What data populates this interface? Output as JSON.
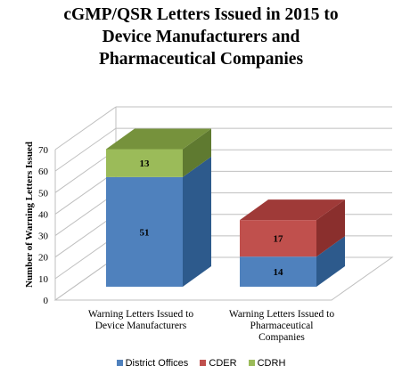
{
  "chart_data": {
    "type": "bar",
    "stacked": true,
    "three_d": true,
    "title_lines": [
      "cGMP/QSR Letters Issued  in 2015 to",
      "Device Manufacturers  and",
      "Pharmaceutical  Companies"
    ],
    "ylabel": "Number  of Warning Letters Issued",
    "ylim": [
      0,
      70
    ],
    "yticks": [
      "0",
      "10",
      "20",
      "30",
      "40",
      "50",
      "60",
      "70"
    ],
    "categories": [
      [
        "Warning Letters Issued to",
        "Device Manufacturers"
      ],
      [
        "Warning Letters Issued to",
        "Pharmaceutical",
        "Companies"
      ]
    ],
    "series": [
      {
        "name": "District Offices",
        "values": [
          51,
          14
        ],
        "labels": [
          "51",
          "14"
        ],
        "color": "#4f81bd",
        "top": "#6b96cc",
        "side": "#2d5a8c"
      },
      {
        "name": "CDER",
        "values": [
          0,
          17
        ],
        "labels": [
          "",
          "17"
        ],
        "color": "#c0504d",
        "top": "#9f3a38",
        "side": "#8a2f2d"
      },
      {
        "name": "CDRH",
        "values": [
          13,
          0
        ],
        "labels": [
          "13",
          ""
        ],
        "color": "#9bbb59",
        "top": "#76923c",
        "side": "#5f7a30"
      }
    ],
    "grid": true,
    "legend_position": "bottom"
  }
}
